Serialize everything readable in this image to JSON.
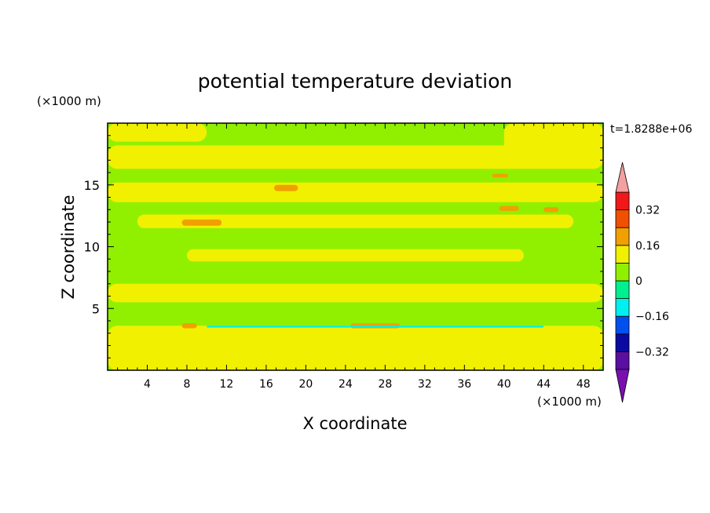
{
  "chart_data": {
    "type": "heatmap",
    "title": "potential temperature deviation",
    "xlabel": "X coordinate",
    "ylabel": "Z coordinate",
    "x_unit": "(×1000 m)",
    "y_unit": "(×1000 m)",
    "time_label": "t=1.8288e+06",
    "xlim": [
      0,
      50
    ],
    "ylim": [
      0,
      20
    ],
    "x_ticks": [
      4,
      8,
      12,
      16,
      20,
      24,
      28,
      32,
      36,
      40,
      44,
      48
    ],
    "y_ticks": [
      5,
      10,
      15
    ],
    "colorbar": {
      "levels": [
        -0.4,
        -0.32,
        -0.24,
        -0.16,
        -0.08,
        0,
        0.08,
        0.16,
        0.24,
        0.32,
        0.4
      ],
      "colors": [
        "#5a0fa0",
        "#0a0aa0",
        "#0050f0",
        "#00f0f0",
        "#00f090",
        "#90f000",
        "#f0f000",
        "#f0a000",
        "#f05000",
        "#f01818"
      ],
      "under_color": "#7a0fb0",
      "over_color": "#f4a0a0",
      "labels": [
        "0.32",
        "0.16",
        "0",
        "−0.16",
        "−0.32"
      ],
      "label_values": [
        0.32,
        0.16,
        0,
        -0.16,
        -0.32
      ]
    },
    "field": {
      "background_level": 0.04,
      "regions": [
        {
          "name": "surface-layer",
          "level": 0.12,
          "x": [
            0,
            50
          ],
          "z": [
            0,
            3.6
          ]
        },
        {
          "name": "band-z17",
          "level": 0.12,
          "x": [
            0,
            50
          ],
          "z": [
            16.3,
            18.2
          ]
        },
        {
          "name": "band-z14",
          "level": 0.12,
          "x": [
            0,
            50
          ],
          "z": [
            13.6,
            15.2
          ]
        },
        {
          "name": "band-z12",
          "level": 0.12,
          "x": [
            3,
            47
          ],
          "z": [
            11.5,
            12.6
          ]
        },
        {
          "name": "band-z9",
          "level": 0.12,
          "x": [
            8,
            42
          ],
          "z": [
            8.8,
            9.8
          ]
        },
        {
          "name": "band-z6",
          "level": 0.12,
          "x": [
            0,
            50
          ],
          "z": [
            5.5,
            7.0
          ]
        },
        {
          "name": "top-left-patch",
          "level": 0.12,
          "x": [
            0,
            10
          ],
          "z": [
            18.5,
            20
          ]
        },
        {
          "name": "top-right-patch",
          "level": 0.12,
          "x": [
            40,
            50
          ],
          "z": [
            17.5,
            20
          ]
        },
        {
          "name": "warm-spot-z15",
          "level": 0.2,
          "x": [
            16.8,
            19.2
          ],
          "z": [
            14.5,
            15.0
          ]
        },
        {
          "name": "warm-spot-z12",
          "level": 0.2,
          "x": [
            7.5,
            11.5
          ],
          "z": [
            11.7,
            12.2
          ]
        },
        {
          "name": "warm-spot-z13a",
          "level": 0.2,
          "x": [
            39.5,
            41.5
          ],
          "z": [
            12.9,
            13.3
          ]
        },
        {
          "name": "warm-spot-z13b",
          "level": 0.2,
          "x": [
            44,
            45.5
          ],
          "z": [
            12.8,
            13.2
          ]
        },
        {
          "name": "warm-spot-z16",
          "level": 0.2,
          "x": [
            38.8,
            40.4
          ],
          "z": [
            15.6,
            15.9
          ]
        },
        {
          "name": "warm-spot-z4a",
          "level": 0.2,
          "x": [
            7.5,
            9.0
          ],
          "z": [
            3.4,
            3.8
          ]
        },
        {
          "name": "warm-spot-z4b",
          "level": 0.2,
          "x": [
            24.5,
            29.5
          ],
          "z": [
            3.4,
            3.8
          ]
        },
        {
          "name": "cool-line-z3.5",
          "level": -0.12,
          "x": [
            10,
            44
          ],
          "z": [
            3.45,
            3.6
          ]
        }
      ]
    }
  }
}
